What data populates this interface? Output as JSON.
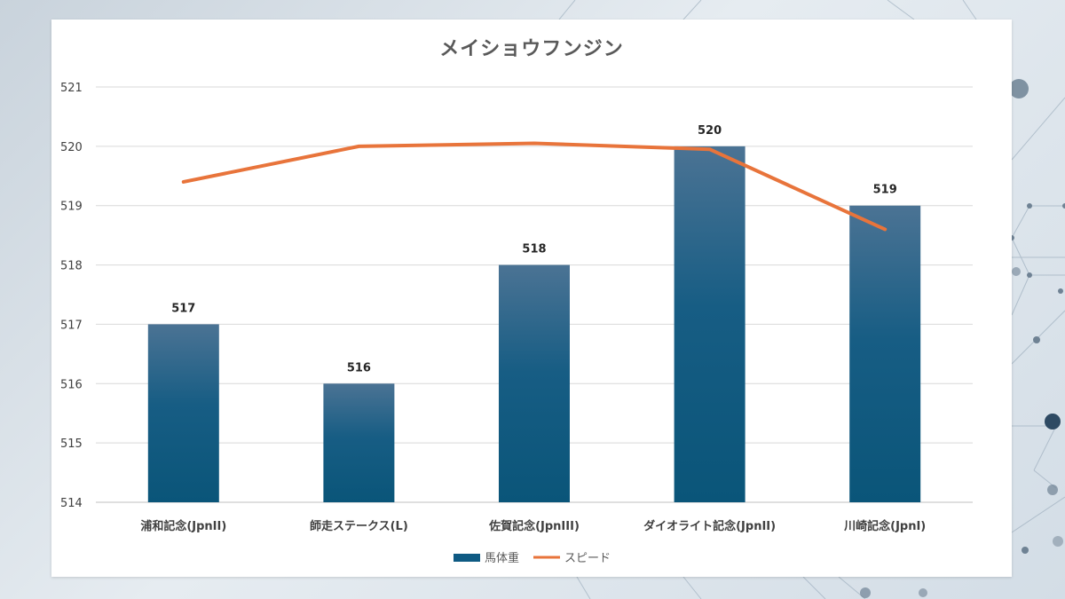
{
  "chart_data": {
    "type": "bar",
    "title": "メイショウフンジン",
    "categories": [
      "浦和記念(JpnII)",
      "師走ステークス(L)",
      "佐賀記念(JpnIII)",
      "ダイオライト記念(JpnII)",
      "川崎記念(JpnI)"
    ],
    "series": [
      {
        "name": "馬体重",
        "type": "bar",
        "color": "#0e5a83",
        "values": [
          517,
          516,
          518,
          520,
          519
        ],
        "data_labels": [
          "517",
          "516",
          "518",
          "520",
          "519"
        ]
      },
      {
        "name": "スピード",
        "type": "line",
        "color": "#e8743b",
        "values": [
          519.4,
          520.0,
          520.05,
          519.95,
          518.6
        ]
      }
    ],
    "ylim": [
      514,
      521
    ],
    "y_ticks": [
      "514",
      "515",
      "516",
      "517",
      "518",
      "519",
      "520",
      "521"
    ],
    "grid": true,
    "legend": "bottom"
  }
}
